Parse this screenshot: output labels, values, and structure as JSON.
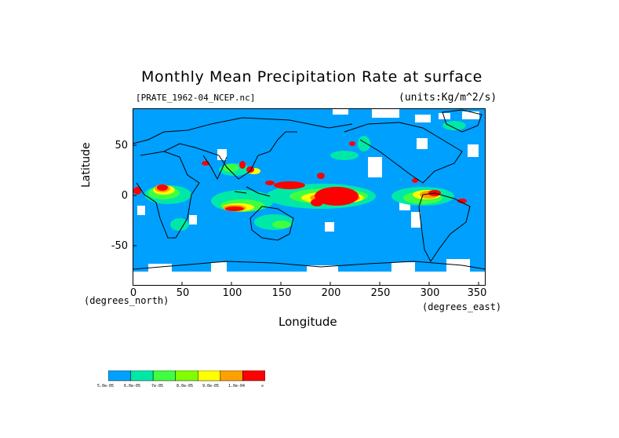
{
  "title": "Monthly Mean Precipitation Rate at surface",
  "subtitle_left": "[PRATE_1962-04_NCEP.nc]",
  "subtitle_right": "(units:Kg/m^2/s)",
  "y_label": "Latitude",
  "y_unit": "(degrees_north)",
  "x_label": "Longitude",
  "x_unit": "(degrees_east)",
  "y_ticks": [
    "50",
    "0",
    "-50"
  ],
  "x_ticks": [
    "0",
    "50",
    "100",
    "150",
    "200",
    "250",
    "300",
    "350"
  ],
  "legend": {
    "labels": [
      "5.0e-05",
      "6.0e-05",
      "7e-05",
      "8.0e-05",
      "9.0e-05",
      "1.0e-04",
      "∞"
    ],
    "colors": [
      "#00a0ff",
      "#00e8a8",
      "#40ff40",
      "#80ff00",
      "#ffff00",
      "#ffa000",
      "#ff0000"
    ]
  },
  "colors": {
    "ocean_bg": "#00a0ff",
    "low": "#00e8a8",
    "mid": "#40ff40",
    "yellow": "#ffff00",
    "orange": "#ffa000",
    "high": "#ff0000",
    "missing": "#ffffff"
  },
  "chart_data": {
    "type": "heatmap",
    "title": "Monthly Mean Precipitation Rate at surface",
    "xlabel": "Longitude",
    "ylabel": "Latitude",
    "xlim": [
      0,
      357
    ],
    "ylim": [
      -90,
      90
    ],
    "x_ticks": [
      0,
      50,
      100,
      150,
      200,
      250,
      300,
      350
    ],
    "y_ticks": [
      50,
      0,
      -50
    ]
  }
}
